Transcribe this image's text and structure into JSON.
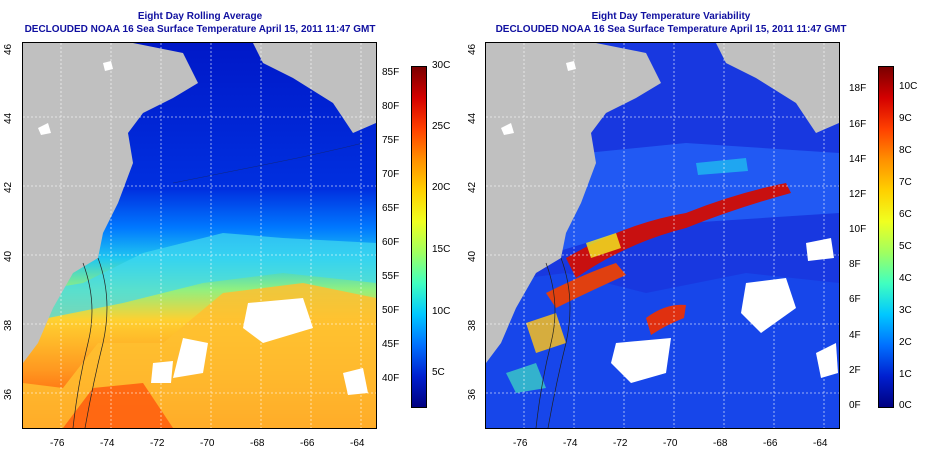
{
  "colors": {
    "land": "#c0c0c0",
    "title": "#1010a0",
    "grid": "#ffffff"
  },
  "panels": [
    {
      "title": "Eight Day Rolling Average",
      "subtitle": "DECLOUDED NOAA 16 Sea Surface Temperature April 15, 2011 11:47 GMT",
      "x_ticks": [
        "-76",
        "-74",
        "-72",
        "-70",
        "-68",
        "-66",
        "-64"
      ],
      "y_ticks": [
        "36",
        "38",
        "40",
        "42",
        "44",
        "46"
      ],
      "colorbar": {
        "f_labels": [
          "85F",
          "80F",
          "75F",
          "70F",
          "65F",
          "60F",
          "55F",
          "50F",
          "45F",
          "40F"
        ],
        "c_labels": [
          "30C",
          "25C",
          "20C",
          "15C",
          "10C",
          "5C"
        ],
        "colors": [
          "#7a0000",
          "#d40000",
          "#ff4000",
          "#ff9000",
          "#ffd000",
          "#f0ff20",
          "#a0ff60",
          "#40ffc0",
          "#00c8ff",
          "#0070ff",
          "#0020d0",
          "#000080"
        ]
      }
    },
    {
      "title": "Eight Day Temperature Variability",
      "subtitle": "DECLOUDED NOAA 16 Sea Surface Temperature April 15, 2011 11:47 GMT",
      "x_ticks": [
        "-76",
        "-74",
        "-72",
        "-70",
        "-68",
        "-66",
        "-64"
      ],
      "y_ticks": [
        "36",
        "38",
        "40",
        "42",
        "44",
        "46"
      ],
      "colorbar": {
        "f_labels": [
          "18F",
          "16F",
          "14F",
          "12F",
          "10F",
          "8F",
          "6F",
          "4F",
          "2F",
          "0F"
        ],
        "c_labels": [
          "10C",
          "9C",
          "8C",
          "7C",
          "6C",
          "5C",
          "4C",
          "3C",
          "2C",
          "1C",
          "0C"
        ],
        "colors": [
          "#7a0000",
          "#d40000",
          "#ff4000",
          "#ff9000",
          "#ffd000",
          "#f0ff20",
          "#a0ff60",
          "#40ffc0",
          "#00c8ff",
          "#0070ff",
          "#0020d0",
          "#000080"
        ]
      }
    }
  ]
}
